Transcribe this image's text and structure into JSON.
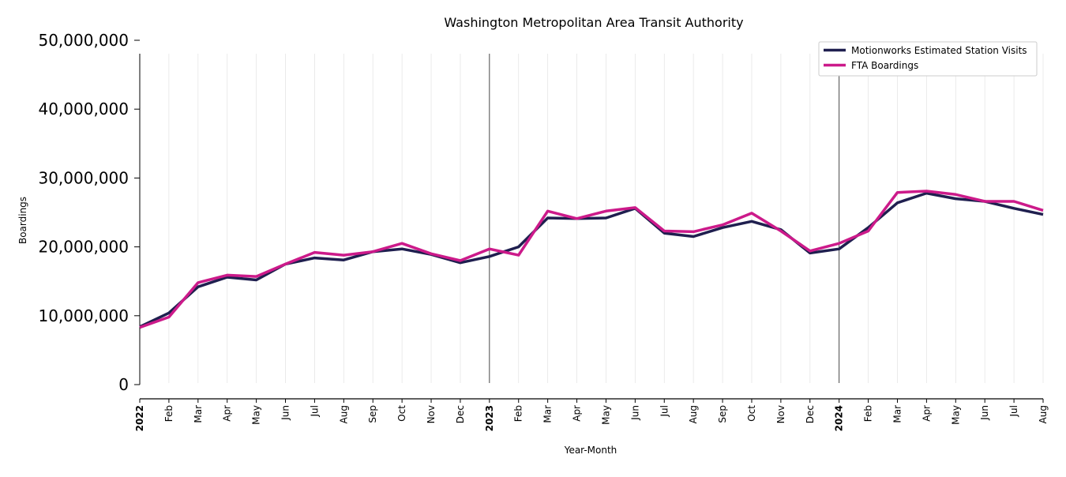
{
  "chart_data": {
    "type": "line",
    "title": "Washington Metropolitan Area Transit Authority",
    "xlabel": "Year-Month",
    "ylabel": "Boardings",
    "ylim": [
      0,
      50000000
    ],
    "yticks": [
      0,
      10000000,
      20000000,
      30000000,
      40000000,
      50000000
    ],
    "ytick_labels": [
      "0",
      "10,000,000",
      "20,000,000",
      "30,000,000",
      "40,000,000",
      "50,000,000"
    ],
    "x": [
      "2022-01",
      "2022-02",
      "2022-03",
      "2022-04",
      "2022-05",
      "2022-06",
      "2022-07",
      "2022-08",
      "2022-09",
      "2022-10",
      "2022-11",
      "2022-12",
      "2023-01",
      "2023-02",
      "2023-03",
      "2023-04",
      "2023-05",
      "2023-06",
      "2023-07",
      "2023-08",
      "2023-09",
      "2023-10",
      "2023-11",
      "2023-12",
      "2024-01",
      "2024-02",
      "2024-03",
      "2024-04",
      "2024-05",
      "2024-06",
      "2024-07",
      "2024-08"
    ],
    "tick_labels": [
      "2022",
      "Feb",
      "Mar",
      "Apr",
      "May",
      "Jun",
      "Jul",
      "Aug",
      "Sep",
      "Oct",
      "Nov",
      "Dec",
      "2023",
      "Feb",
      "Mar",
      "Apr",
      "May",
      "Jun",
      "Jul",
      "Aug",
      "Sep",
      "Oct",
      "Nov",
      "Dec",
      "2024",
      "Feb",
      "Mar",
      "Apr",
      "May",
      "Jun",
      "Jul",
      "Aug"
    ],
    "year_ticks": [
      "2022",
      "2023",
      "2024"
    ],
    "year_separators": [
      "2023-01",
      "2024-01"
    ],
    "grid": "vertical",
    "legend_position": "top-right",
    "series": [
      {
        "name": "Motionworks Estimated Station Visits",
        "color": "#1f1f4f",
        "values": [
          8400000,
          10400000,
          14200000,
          15600000,
          15200000,
          17500000,
          18400000,
          18100000,
          19300000,
          19700000,
          18900000,
          17700000,
          18600000,
          20000000,
          24200000,
          24100000,
          24200000,
          25600000,
          22000000,
          21500000,
          22800000,
          23700000,
          22500000,
          19100000,
          19700000,
          22800000,
          26400000,
          27800000,
          27000000,
          26600000,
          25600000,
          24700000
        ]
      },
      {
        "name": "FTA Boardings",
        "color": "#cc1a8a",
        "values": [
          8300000,
          9800000,
          14800000,
          15900000,
          15700000,
          17500000,
          19200000,
          18800000,
          19300000,
          20500000,
          19000000,
          18000000,
          19700000,
          18800000,
          25200000,
          24100000,
          25200000,
          25700000,
          22300000,
          22200000,
          23200000,
          24900000,
          22300000,
          19400000,
          20500000,
          22300000,
          27900000,
          28100000,
          27600000,
          26600000,
          26600000,
          25300000
        ]
      }
    ]
  }
}
